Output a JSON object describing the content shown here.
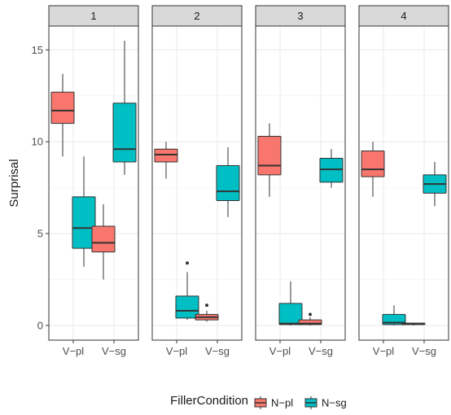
{
  "chart_data": {
    "type": "boxplot",
    "ylabel": "Surprisal",
    "xlabel": "",
    "ylim": [
      -0.8,
      16.3
    ],
    "yticks": [
      0,
      5,
      10,
      15
    ],
    "categories": [
      "V−pl",
      "V−sg"
    ],
    "grid": true,
    "legend": {
      "title": "FillerCondition",
      "placement": "bottom",
      "entries": [
        {
          "name": "N−pl",
          "color": "#F8766D"
        },
        {
          "name": "N−sg",
          "color": "#00BFC4"
        }
      ]
    },
    "facets": [
      {
        "label": "1",
        "boxes": [
          {
            "category": "V−pl",
            "series": "N−pl",
            "whisker_low": 9.2,
            "q1": 11.0,
            "median": 11.7,
            "q3": 12.7,
            "whisker_high": 13.7,
            "outliers": []
          },
          {
            "category": "V−pl",
            "series": "N−sg",
            "whisker_low": 3.2,
            "q1": 4.2,
            "median": 5.3,
            "q3": 7.0,
            "whisker_high": 9.2,
            "outliers": []
          },
          {
            "category": "V−sg",
            "series": "N−pl",
            "whisker_low": 2.5,
            "q1": 4.0,
            "median": 4.5,
            "q3": 5.4,
            "whisker_high": 6.6,
            "outliers": []
          },
          {
            "category": "V−sg",
            "series": "N−sg",
            "whisker_low": 8.2,
            "q1": 8.9,
            "median": 9.6,
            "q3": 12.1,
            "whisker_high": 15.5,
            "outliers": []
          }
        ]
      },
      {
        "label": "2",
        "boxes": [
          {
            "category": "V−pl",
            "series": "N−pl",
            "whisker_low": 8.0,
            "q1": 8.9,
            "median": 9.3,
            "q3": 9.6,
            "whisker_high": 10.0,
            "outliers": []
          },
          {
            "category": "V−pl",
            "series": "N−sg",
            "whisker_low": 0.3,
            "q1": 0.4,
            "median": 0.8,
            "q3": 1.6,
            "whisker_high": 2.9,
            "outliers": [
              3.4
            ]
          },
          {
            "category": "V−sg",
            "series": "N−pl",
            "whisker_low": 0.2,
            "q1": 0.3,
            "median": 0.45,
            "q3": 0.6,
            "whisker_high": 0.8,
            "outliers": [
              1.1
            ]
          },
          {
            "category": "V−sg",
            "series": "N−sg",
            "whisker_low": 5.9,
            "q1": 6.8,
            "median": 7.3,
            "q3": 8.7,
            "whisker_high": 9.7,
            "outliers": []
          }
        ]
      },
      {
        "label": "3",
        "boxes": [
          {
            "category": "V−pl",
            "series": "N−pl",
            "whisker_low": 7.0,
            "q1": 8.2,
            "median": 8.7,
            "q3": 10.3,
            "whisker_high": 11.0,
            "outliers": []
          },
          {
            "category": "V−pl",
            "series": "N−sg",
            "whisker_low": 0.0,
            "q1": 0.05,
            "median": 0.1,
            "q3": 1.2,
            "whisker_high": 2.4,
            "outliers": []
          },
          {
            "category": "V−sg",
            "series": "N−pl",
            "whisker_low": 0.0,
            "q1": 0.05,
            "median": 0.1,
            "q3": 0.3,
            "whisker_high": 0.45,
            "outliers": [
              0.6
            ]
          },
          {
            "category": "V−sg",
            "series": "N−sg",
            "whisker_low": 7.5,
            "q1": 7.8,
            "median": 8.5,
            "q3": 9.1,
            "whisker_high": 9.6,
            "outliers": []
          }
        ]
      },
      {
        "label": "4",
        "boxes": [
          {
            "category": "V−pl",
            "series": "N−pl",
            "whisker_low": 7.0,
            "q1": 8.1,
            "median": 8.5,
            "q3": 9.5,
            "whisker_high": 10.0,
            "outliers": []
          },
          {
            "category": "V−pl",
            "series": "N−sg",
            "whisker_low": 0.0,
            "q1": 0.05,
            "median": 0.15,
            "q3": 0.6,
            "whisker_high": 1.1,
            "outliers": []
          },
          {
            "category": "V−sg",
            "series": "N−pl",
            "whisker_low": 0.0,
            "q1": 0.05,
            "median": 0.1,
            "q3": 0.12,
            "whisker_high": 0.15,
            "outliers": []
          },
          {
            "category": "V−sg",
            "series": "N−sg",
            "whisker_low": 6.5,
            "q1": 7.2,
            "median": 7.7,
            "q3": 8.2,
            "whisker_high": 8.9,
            "outliers": []
          }
        ]
      }
    ]
  }
}
